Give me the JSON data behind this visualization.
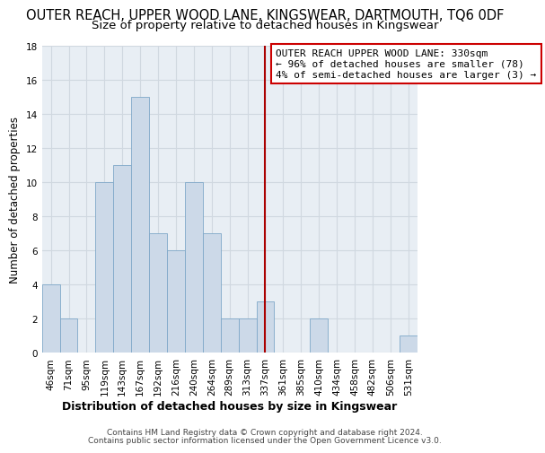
{
  "title": "OUTER REACH, UPPER WOOD LANE, KINGSWEAR, DARTMOUTH, TQ6 0DF",
  "subtitle": "Size of property relative to detached houses in Kingswear",
  "xlabel": "Distribution of detached houses by size in Kingswear",
  "ylabel": "Number of detached properties",
  "bar_color": "#ccd9e8",
  "bar_edge_color": "#7fa8c8",
  "grid_color": "#d0d8e0",
  "bin_labels": [
    "46sqm",
    "71sqm",
    "95sqm",
    "119sqm",
    "143sqm",
    "167sqm",
    "192sqm",
    "216sqm",
    "240sqm",
    "264sqm",
    "289sqm",
    "313sqm",
    "337sqm",
    "361sqm",
    "385sqm",
    "410sqm",
    "434sqm",
    "458sqm",
    "482sqm",
    "506sqm",
    "531sqm"
  ],
  "bar_heights": [
    4,
    2,
    0,
    10,
    11,
    15,
    7,
    6,
    10,
    7,
    2,
    2,
    3,
    0,
    0,
    2,
    0,
    0,
    0,
    0,
    1
  ],
  "ylim": [
    0,
    18
  ],
  "yticks": [
    0,
    2,
    4,
    6,
    8,
    10,
    12,
    14,
    16,
    18
  ],
  "vline_x_index": 12,
  "vline_color": "#aa0000",
  "annotation_text": "OUTER REACH UPPER WOOD LANE: 330sqm\n← 96% of detached houses are smaller (78)\n4% of semi-detached houses are larger (3) →",
  "annotation_box_color": "#ffffff",
  "annotation_box_edge": "#cc0000",
  "footer1": "Contains HM Land Registry data © Crown copyright and database right 2024.",
  "footer2": "Contains public sector information licensed under the Open Government Licence v3.0.",
  "title_fontsize": 10.5,
  "subtitle_fontsize": 9.5,
  "xlabel_fontsize": 9,
  "ylabel_fontsize": 8.5,
  "tick_fontsize": 7.5,
  "annotation_fontsize": 8,
  "footer_fontsize": 6.5,
  "bg_color": "#e8eef4"
}
